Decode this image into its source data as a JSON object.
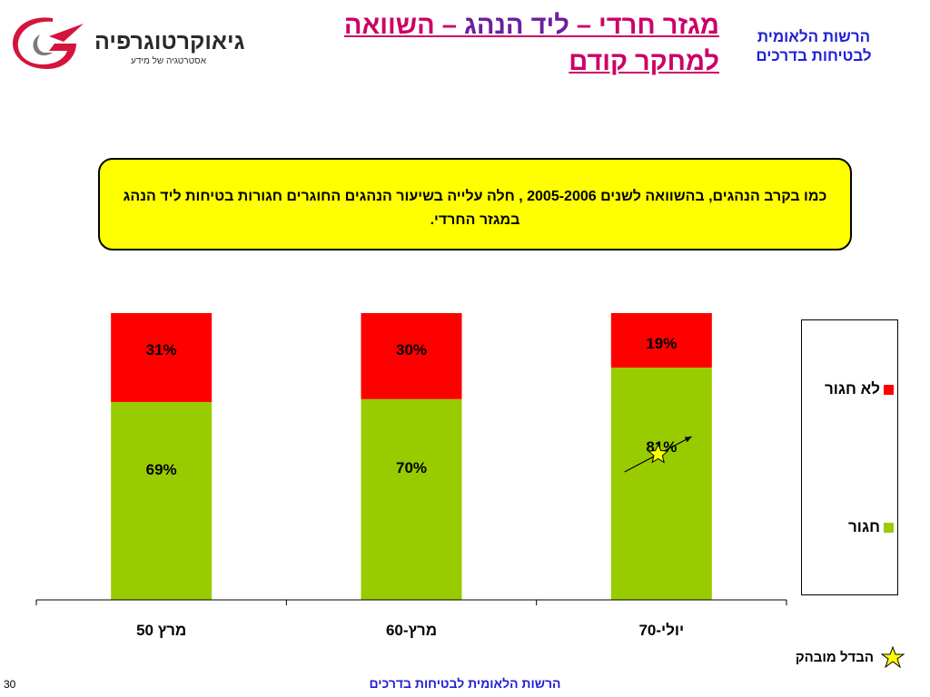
{
  "logo": {
    "brand_bold": "גיאו",
    "brand_rest": "קרטוגרפיה",
    "tagline": "אסטרטגיה של מידע"
  },
  "header": {
    "title_line1_a": "מגזר חרדי – ",
    "title_line1_b": "ליד הנהג",
    "title_line1_c": " – השוואה",
    "title_line2": "למחקר קודם",
    "org_line1": "הרשות הלאומית",
    "org_line2": "לבטיחות בדרכים"
  },
  "callout": {
    "text": "כמו בקרב הנהגים, בהשוואה לשנים 2005-2006 , חלה עלייה בשיעור הנהגים החוגרים חגורות בטיחות ליד הנהג במגזר החרדי."
  },
  "chart_data": {
    "type": "bar",
    "stacked": true,
    "percent": true,
    "categories": [
      "מרץ 50",
      "מרץ-60",
      "יולי-70"
    ],
    "series": [
      {
        "name": "חגור",
        "values": [
          69,
          70,
          81
        ],
        "color": "#99cc00"
      },
      {
        "name": "לא חגור",
        "values": [
          31,
          30,
          19
        ],
        "color": "#ff0000"
      }
    ],
    "value_labels": [
      [
        "69%",
        "70%",
        "81%"
      ],
      [
        "31%",
        "30%",
        "19%"
      ]
    ],
    "ylim": [
      0,
      100
    ],
    "grid": false,
    "legend_position": "right",
    "annotations": [
      {
        "type": "star-arrow",
        "between_categories": [
          1,
          2
        ],
        "meaning": "הבדל מובהק"
      }
    ]
  },
  "legend": {
    "items": [
      {
        "label": "לא חגור",
        "color": "#ff0000"
      },
      {
        "label": "חגור",
        "color": "#99cc00"
      }
    ]
  },
  "key": {
    "label": "הבדל מובהק",
    "icon": "star-icon",
    "star_color": "#ffff00"
  },
  "footer": {
    "text": "הרשות הלאומית לבטיחות בדרכים",
    "page_number": "30"
  }
}
